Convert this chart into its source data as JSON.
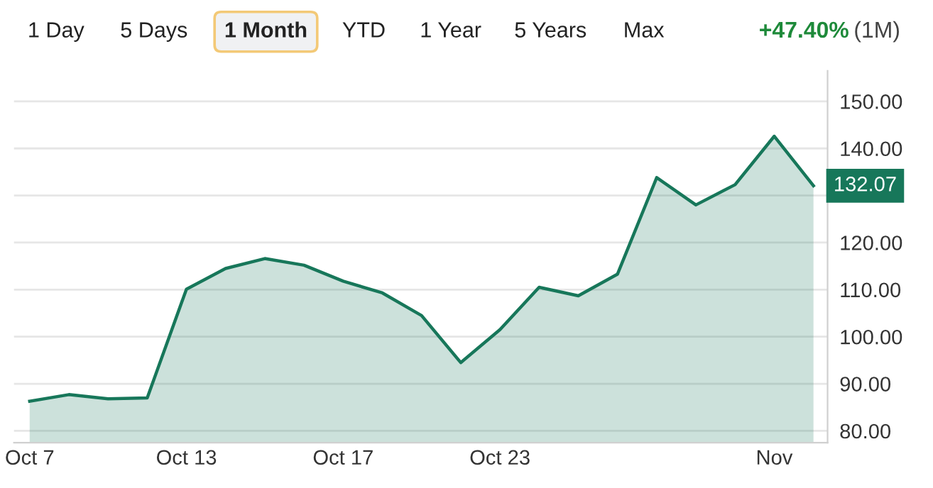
{
  "chart_data": {
    "type": "area",
    "categories": [
      "Oct 7",
      null,
      null,
      null,
      "Oct 13",
      null,
      null,
      null,
      "Oct 17",
      null,
      null,
      null,
      "Oct 23",
      null,
      null,
      null,
      null,
      null,
      null,
      "Nov",
      null
    ],
    "series": [
      {
        "color": "#17775a",
        "values": [
          86.3,
          87.7,
          86.8,
          87.0,
          110.1,
          114.5,
          116.6,
          115.2,
          111.8,
          109.3,
          104.5,
          94.5,
          101.5,
          110.5,
          108.7,
          113.3,
          133.8,
          128.0,
          132.3,
          142.6,
          132.07
        ]
      }
    ],
    "ylim": [
      77.5,
      156.5
    ],
    "yticks": [
      {
        "value": 80,
        "label": "80.00"
      },
      {
        "value": 90,
        "label": "90.00"
      },
      {
        "value": 100,
        "label": "100.00"
      },
      {
        "value": 110,
        "label": "110.00"
      },
      {
        "value": 120,
        "label": "120.00"
      },
      {
        "value": 130,
        "label": null
      },
      {
        "value": 140,
        "label": "140.00"
      },
      {
        "value": 150,
        "label": "150.00"
      }
    ],
    "grid": "y",
    "legend": false,
    "annotations": [
      "1 Day",
      "5 Days",
      "1 Month",
      "YTD",
      "1 Year",
      "5 Years",
      "Max",
      "+47.40%",
      "(1M)",
      "132.07"
    ]
  }
}
